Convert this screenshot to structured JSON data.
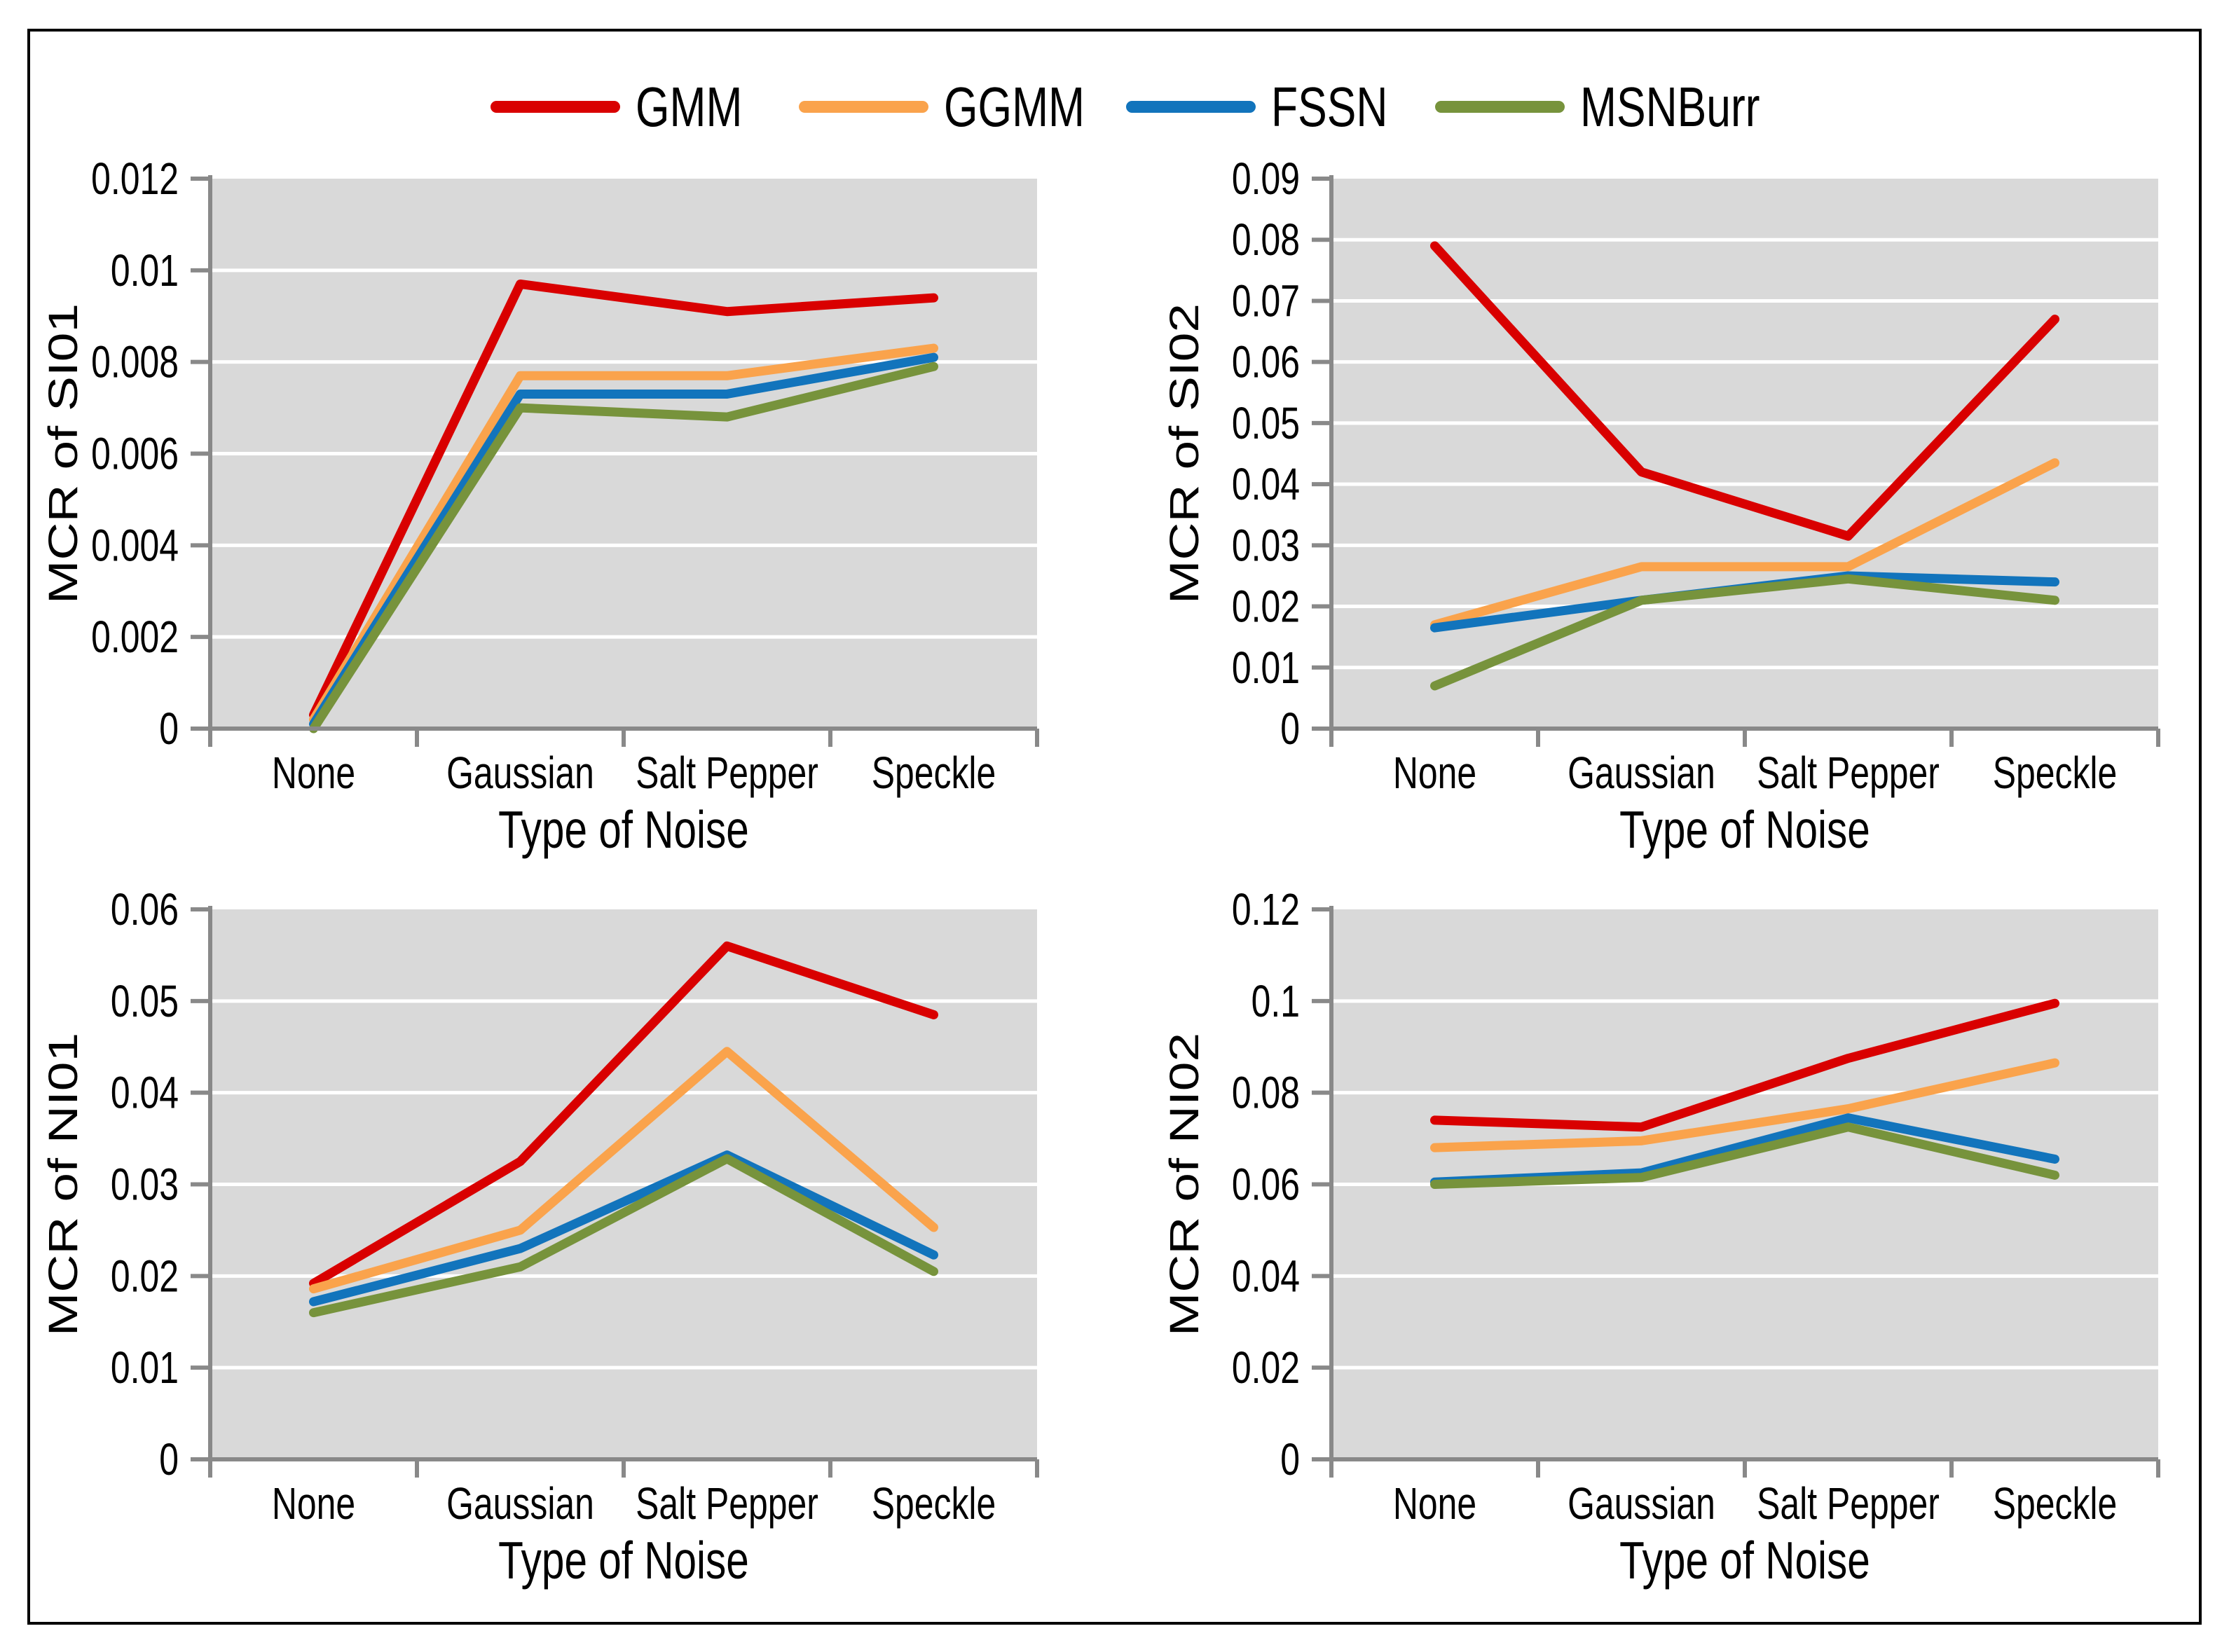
{
  "style": {
    "plot_bg": "#D9D9D9",
    "grid_color": "#FFFFFF",
    "axis_color": "#898989",
    "text_color": "#000000",
    "frame_color": "#000000"
  },
  "legend": {
    "position": "top-center",
    "items": [
      {
        "label": "GMM",
        "color": "#D90000",
        "icon": "line-swatch"
      },
      {
        "label": "GGMM",
        "color": "#FAA34C",
        "icon": "line-swatch"
      },
      {
        "label": "FSSN",
        "color": "#1274BC",
        "icon": "line-swatch"
      },
      {
        "label": "MSNBurr",
        "color": "#77933C",
        "icon": "line-swatch"
      }
    ]
  },
  "chart_data": [
    {
      "type": "line",
      "title": "",
      "ylabel": "MCR of SI01",
      "xlabel": "Type of Noise",
      "categories": [
        "None",
        "Gaussian",
        "Salt Pepper",
        "Speckle"
      ],
      "ylim": [
        0,
        0.012
      ],
      "yticks": [
        "0",
        "0.002",
        "0.004",
        "0.006",
        "0.008",
        "0.01",
        "0.012"
      ],
      "grid": true,
      "series": [
        {
          "name": "GMM",
          "color": "#D90000",
          "values": [
            0.0003,
            0.0097,
            0.0091,
            0.0094
          ]
        },
        {
          "name": "GGMM",
          "color": "#FAA34C",
          "values": [
            0.0002,
            0.0077,
            0.0077,
            0.0083
          ]
        },
        {
          "name": "FSSN",
          "color": "#1274BC",
          "values": [
            0.0001,
            0.0073,
            0.0073,
            0.0081
          ]
        },
        {
          "name": "MSNBurr",
          "color": "#77933C",
          "values": [
            0.0,
            0.007,
            0.0068,
            0.0079
          ]
        }
      ]
    },
    {
      "type": "line",
      "title": "",
      "ylabel": "MCR of SI02",
      "xlabel": "Type of Noise",
      "categories": [
        "None",
        "Gaussian",
        "Salt Pepper",
        "Speckle"
      ],
      "ylim": [
        0,
        0.09
      ],
      "yticks": [
        "0",
        "0.01",
        "0.02",
        "0.03",
        "0.04",
        "0.05",
        "0.06",
        "0.07",
        "0.08",
        "0.09"
      ],
      "grid": true,
      "series": [
        {
          "name": "GMM",
          "color": "#D90000",
          "values": [
            0.079,
            0.042,
            0.0315,
            0.067
          ]
        },
        {
          "name": "GGMM",
          "color": "#FAA34C",
          "values": [
            0.017,
            0.0265,
            0.0265,
            0.0435
          ]
        },
        {
          "name": "FSSN",
          "color": "#1274BC",
          "values": [
            0.0165,
            0.021,
            0.025,
            0.024
          ]
        },
        {
          "name": "MSNBurr",
          "color": "#77933C",
          "values": [
            0.007,
            0.021,
            0.0245,
            0.021
          ]
        }
      ]
    },
    {
      "type": "line",
      "title": "",
      "ylabel": "MCR of NI01",
      "xlabel": "Type of Noise",
      "categories": [
        "None",
        "Gaussian",
        "Salt Pepper",
        "Speckle"
      ],
      "ylim": [
        0,
        0.06
      ],
      "yticks": [
        "0",
        "0.01",
        "0.02",
        "0.03",
        "0.04",
        "0.05",
        "0.06"
      ],
      "grid": true,
      "series": [
        {
          "name": "GMM",
          "color": "#D90000",
          "values": [
            0.0192,
            0.0325,
            0.056,
            0.0485
          ]
        },
        {
          "name": "GGMM",
          "color": "#FAA34C",
          "values": [
            0.0186,
            0.025,
            0.0445,
            0.0253
          ]
        },
        {
          "name": "FSSN",
          "color": "#1274BC",
          "values": [
            0.0172,
            0.023,
            0.0332,
            0.0223
          ]
        },
        {
          "name": "MSNBurr",
          "color": "#77933C",
          "values": [
            0.016,
            0.021,
            0.0328,
            0.0205
          ]
        }
      ]
    },
    {
      "type": "line",
      "title": "",
      "ylabel": "MCR of NI02",
      "xlabel": "Type of Noise",
      "categories": [
        "None",
        "Gaussian",
        "Salt Pepper",
        "Speckle"
      ],
      "ylim": [
        0,
        0.12
      ],
      "yticks": [
        "0",
        "0.02",
        "0.04",
        "0.06",
        "0.08",
        "0.1",
        "0.12"
      ],
      "grid": true,
      "series": [
        {
          "name": "GMM",
          "color": "#D90000",
          "values": [
            0.074,
            0.0725,
            0.0875,
            0.0995
          ]
        },
        {
          "name": "GGMM",
          "color": "#FAA34C",
          "values": [
            0.068,
            0.0695,
            0.0765,
            0.0865
          ]
        },
        {
          "name": "FSSN",
          "color": "#1274BC",
          "values": [
            0.0605,
            0.0625,
            0.0745,
            0.0655
          ]
        },
        {
          "name": "MSNBurr",
          "color": "#77933C",
          "values": [
            0.06,
            0.0615,
            0.0725,
            0.062
          ]
        }
      ]
    }
  ]
}
